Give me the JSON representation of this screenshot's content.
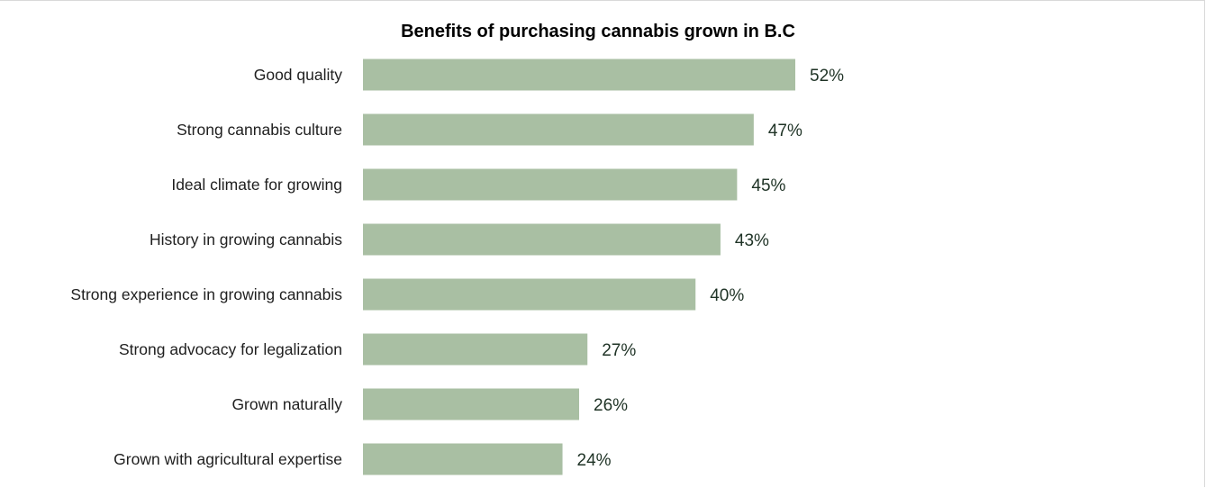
{
  "chart_data": {
    "type": "bar",
    "orientation": "horizontal",
    "title": "Benefits of purchasing cannabis grown in B.C",
    "xlabel": "",
    "ylabel": "",
    "categories": [
      "Good quality",
      "Strong cannabis culture",
      "Ideal climate for growing",
      "History in growing cannabis",
      "Strong experience in growing cannabis",
      "Strong advocacy for legalization",
      "Grown naturally",
      "Grown with agricultural expertise"
    ],
    "values": [
      52,
      47,
      45,
      43,
      40,
      27,
      26,
      24
    ],
    "value_labels": [
      "52%",
      "47%",
      "45%",
      "43%",
      "40%",
      "27%",
      "26%",
      "24%"
    ],
    "unit": "%",
    "xlim": [
      0,
      52
    ],
    "grid": false,
    "legend": "none",
    "bar_color": "#a9bfa3"
  }
}
